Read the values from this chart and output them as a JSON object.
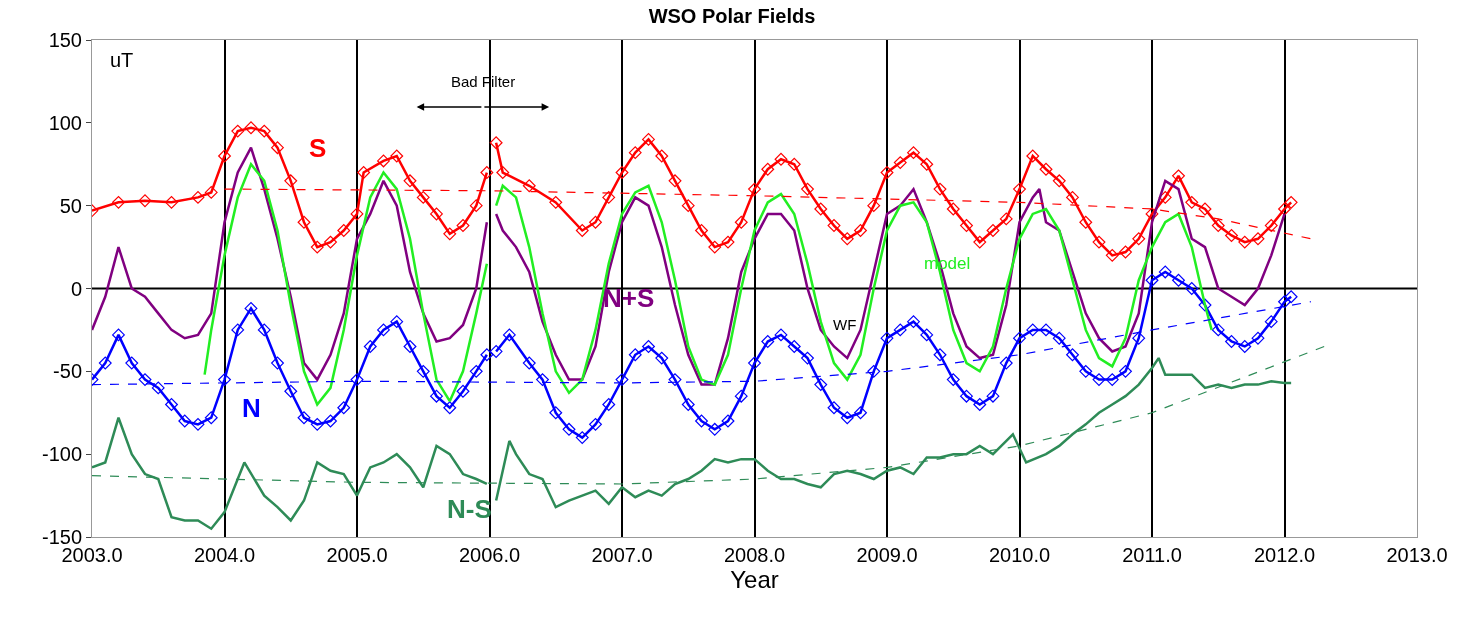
{
  "chart_data": {
    "type": "line",
    "title": "WSO Polar Fields",
    "xlabel": "Year",
    "ylabel": "uT",
    "xlim": [
      2003,
      2013
    ],
    "xticks": [
      {
        "value": 2003,
        "label": "2003.0"
      },
      {
        "value": 2004,
        "label": "2004.0"
      },
      {
        "value": 2005,
        "label": "2005.0"
      },
      {
        "value": 2006,
        "label": "2006.0"
      },
      {
        "value": 2007,
        "label": "2007.0"
      },
      {
        "value": 2008,
        "label": "2008.0"
      },
      {
        "value": 2009,
        "label": "2009.0"
      },
      {
        "value": 2010,
        "label": "2010.0"
      },
      {
        "value": 2011,
        "label": "2011.0"
      },
      {
        "value": 2012,
        "label": "2012.0"
      },
      {
        "value": 2013,
        "label": "2013.0"
      }
    ],
    "ylim": [
      -150,
      150
    ],
    "yticks": [
      -150,
      -100,
      -50,
      0,
      50,
      100,
      150
    ],
    "grid": "x",
    "legend": false,
    "series": [
      {
        "name": "S",
        "color": "#ff0000",
        "marker": "diamond",
        "line_style": "solid",
        "x": [
          2003.0,
          2003.2,
          2003.4,
          2003.6,
          2003.8,
          2003.9,
          2004.0,
          2004.1,
          2004.2,
          2004.3,
          2004.4,
          2004.5,
          2004.6,
          2004.7,
          2004.8,
          2004.9,
          2005.0,
          2005.05,
          2005.2,
          2005.3,
          2005.4,
          2005.5,
          2005.6,
          2005.7,
          2005.8,
          2005.9,
          2005.98,
          2006.0,
          2006.05,
          2006.1,
          2006.3,
          2006.5,
          2006.7,
          2006.8,
          2006.9,
          2007.0,
          2007.1,
          2007.2,
          2007.3,
          2007.4,
          2007.5,
          2007.6,
          2007.7,
          2007.8,
          2007.9,
          2008.0,
          2008.1,
          2008.2,
          2008.3,
          2008.4,
          2008.5,
          2008.6,
          2008.7,
          2008.8,
          2008.9,
          2009.0,
          2009.1,
          2009.2,
          2009.3,
          2009.4,
          2009.5,
          2009.6,
          2009.7,
          2009.8,
          2009.9,
          2010.0,
          2010.1,
          2010.2,
          2010.3,
          2010.4,
          2010.5,
          2010.6,
          2010.7,
          2010.8,
          2010.9,
          2011.0,
          2011.1,
          2011.2,
          2011.3,
          2011.4,
          2011.5,
          2011.6,
          2011.7,
          2011.8,
          2011.9,
          2012.0,
          2012.05
        ],
        "values": [
          47,
          52,
          53,
          52,
          55,
          58,
          80,
          95,
          97,
          95,
          85,
          65,
          40,
          25,
          28,
          35,
          45,
          70,
          77,
          80,
          65,
          55,
          45,
          33,
          38,
          50,
          70,
          null,
          88,
          70,
          62,
          52,
          35,
          40,
          55,
          70,
          82,
          90,
          80,
          65,
          50,
          35,
          25,
          28,
          40,
          60,
          72,
          78,
          75,
          60,
          48,
          38,
          30,
          35,
          50,
          70,
          76,
          82,
          75,
          60,
          48,
          38,
          28,
          35,
          42,
          60,
          80,
          72,
          65,
          55,
          40,
          28,
          20,
          22,
          30,
          45,
          55,
          68,
          52,
          48,
          38,
          32,
          28,
          30,
          38,
          48,
          52
        ]
      },
      {
        "name": "N",
        "color": "#0000ff",
        "marker": "diamond",
        "line_style": "solid",
        "x": [
          2003.0,
          2003.1,
          2003.2,
          2003.3,
          2003.4,
          2003.5,
          2003.6,
          2003.7,
          2003.8,
          2003.9,
          2004.0,
          2004.1,
          2004.2,
          2004.3,
          2004.4,
          2004.5,
          2004.6,
          2004.7,
          2004.8,
          2004.9,
          2005.0,
          2005.1,
          2005.2,
          2005.3,
          2005.4,
          2005.5,
          2005.6,
          2005.7,
          2005.8,
          2005.9,
          2005.98,
          2006.0,
          2006.05,
          2006.15,
          2006.3,
          2006.4,
          2006.5,
          2006.6,
          2006.7,
          2006.8,
          2006.9,
          2007.0,
          2007.1,
          2007.2,
          2007.3,
          2007.4,
          2007.5,
          2007.6,
          2007.7,
          2007.8,
          2007.9,
          2008.0,
          2008.1,
          2008.2,
          2008.3,
          2008.4,
          2008.5,
          2008.6,
          2008.7,
          2008.8,
          2008.9,
          2009.0,
          2009.1,
          2009.2,
          2009.3,
          2009.4,
          2009.5,
          2009.6,
          2009.7,
          2009.8,
          2009.9,
          2010.0,
          2010.1,
          2010.2,
          2010.3,
          2010.4,
          2010.5,
          2010.6,
          2010.7,
          2010.8,
          2010.9,
          2011.0,
          2011.1,
          2011.2,
          2011.3,
          2011.4,
          2011.5,
          2011.6,
          2011.7,
          2011.8,
          2011.9,
          2012.0,
          2012.05
        ],
        "values": [
          -55,
          -45,
          -28,
          -45,
          -55,
          -60,
          -70,
          -80,
          -82,
          -78,
          -55,
          -25,
          -12,
          -25,
          -45,
          -62,
          -78,
          -82,
          -80,
          -72,
          -55,
          -35,
          -25,
          -20,
          -35,
          -50,
          -65,
          -72,
          -62,
          -50,
          -40,
          null,
          -38,
          -28,
          -45,
          -55,
          -75,
          -85,
          -90,
          -82,
          -70,
          -55,
          -40,
          -35,
          -42,
          -55,
          -70,
          -80,
          -85,
          -80,
          -65,
          -45,
          -32,
          -28,
          -35,
          -42,
          -58,
          -72,
          -78,
          -75,
          -50,
          -30,
          -25,
          -20,
          -28,
          -40,
          -55,
          -65,
          -70,
          -65,
          -45,
          -30,
          -25,
          -25,
          -30,
          -40,
          -50,
          -55,
          -55,
          -50,
          -30,
          5,
          10,
          5,
          0,
          -10,
          -25,
          -32,
          -35,
          -30,
          -20,
          -8,
          -5
        ]
      },
      {
        "name": "N+S",
        "color": "#800080",
        "line_style": "solid",
        "x": [
          2003.0,
          2003.1,
          2003.2,
          2003.3,
          2003.4,
          2003.5,
          2003.6,
          2003.7,
          2003.8,
          2003.9,
          2004.0,
          2004.1,
          2004.2,
          2004.3,
          2004.4,
          2004.5,
          2004.6,
          2004.7,
          2004.8,
          2004.9,
          2005.0,
          2005.1,
          2005.2,
          2005.3,
          2005.4,
          2005.5,
          2005.6,
          2005.7,
          2005.8,
          2005.9,
          2005.98,
          2006.0,
          2006.05,
          2006.1,
          2006.2,
          2006.3,
          2006.4,
          2006.5,
          2006.6,
          2006.7,
          2006.8,
          2006.9,
          2007.0,
          2007.1,
          2007.2,
          2007.3,
          2007.4,
          2007.5,
          2007.6,
          2007.7,
          2007.8,
          2007.9,
          2008.0,
          2008.1,
          2008.2,
          2008.3,
          2008.4,
          2008.5,
          2008.6,
          2008.7,
          2008.8,
          2008.9,
          2009.0,
          2009.1,
          2009.2,
          2009.3,
          2009.4,
          2009.5,
          2009.6,
          2009.7,
          2009.8,
          2009.9,
          2010.0,
          2010.1,
          2010.15,
          2010.2,
          2010.3,
          2010.4,
          2010.5,
          2010.6,
          2010.7,
          2010.8,
          2010.9,
          2011.0,
          2011.1,
          2011.2,
          2011.3,
          2011.4,
          2011.5,
          2011.6,
          2011.7,
          2011.8,
          2011.9,
          2012.0
        ],
        "values": [
          -25,
          -5,
          25,
          0,
          -5,
          -15,
          -25,
          -30,
          -28,
          -15,
          40,
          70,
          85,
          60,
          30,
          -5,
          -45,
          -55,
          -40,
          -15,
          30,
          45,
          65,
          50,
          10,
          -15,
          -32,
          -30,
          -22,
          0,
          40,
          null,
          45,
          35,
          25,
          10,
          -20,
          -40,
          -55,
          -55,
          -35,
          10,
          40,
          55,
          50,
          25,
          -10,
          -40,
          -58,
          -58,
          -30,
          10,
          30,
          45,
          45,
          35,
          0,
          -25,
          -35,
          -42,
          -25,
          10,
          45,
          50,
          60,
          40,
          15,
          -15,
          -35,
          -42,
          -40,
          -10,
          40,
          55,
          60,
          40,
          35,
          10,
          -15,
          -30,
          -38,
          -35,
          -15,
          40,
          65,
          60,
          30,
          25,
          0,
          -5,
          -10,
          0,
          20,
          45
        ]
      },
      {
        "name": "model",
        "color": "#22ee22",
        "line_style": "solid",
        "x": [
          2003.85,
          2003.9,
          2004.0,
          2004.1,
          2004.2,
          2004.3,
          2004.4,
          2004.5,
          2004.6,
          2004.7,
          2004.8,
          2004.9,
          2005.0,
          2005.1,
          2005.2,
          2005.3,
          2005.4,
          2005.5,
          2005.6,
          2005.7,
          2005.8,
          2005.9,
          2005.98,
          2006.0,
          2006.05,
          2006.1,
          2006.2,
          2006.3,
          2006.4,
          2006.5,
          2006.6,
          2006.7,
          2006.8,
          2006.9,
          2007.0,
          2007.1,
          2007.2,
          2007.3,
          2007.4,
          2007.5,
          2007.6,
          2007.7,
          2007.8,
          2007.9,
          2008.0,
          2008.1,
          2008.2,
          2008.3,
          2008.4,
          2008.5,
          2008.6,
          2008.7,
          2008.8,
          2008.9,
          2009.0,
          2009.1,
          2009.2,
          2009.3,
          2009.4,
          2009.5,
          2009.6,
          2009.7,
          2009.8,
          2009.9,
          2010.0,
          2010.1,
          2010.2,
          2010.3,
          2010.4,
          2010.5,
          2010.6,
          2010.7,
          2010.8,
          2010.9,
          2011.0,
          2011.1,
          2011.2,
          2011.3,
          2011.4,
          2011.45
        ],
        "values": [
          -52,
          -25,
          20,
          55,
          75,
          65,
          35,
          -10,
          -50,
          -70,
          -60,
          -25,
          20,
          55,
          70,
          60,
          30,
          -15,
          -55,
          -68,
          -50,
          -15,
          15,
          null,
          50,
          62,
          55,
          25,
          -15,
          -50,
          -63,
          -55,
          -25,
          15,
          45,
          58,
          62,
          40,
          5,
          -35,
          -55,
          -58,
          -40,
          0,
          35,
          52,
          57,
          45,
          15,
          -20,
          -45,
          -55,
          -40,
          0,
          35,
          50,
          52,
          40,
          10,
          -25,
          -45,
          -50,
          -35,
          0,
          30,
          45,
          48,
          35,
          5,
          -25,
          -42,
          -47,
          -30,
          5,
          25,
          40,
          45,
          25,
          -10,
          -25
        ]
      },
      {
        "name": "N-S",
        "color": "#2e8b57",
        "line_style": "solid",
        "x": [
          2003.0,
          2003.1,
          2003.2,
          2003.3,
          2003.4,
          2003.5,
          2003.6,
          2003.7,
          2003.8,
          2003.9,
          2004.0,
          2004.1,
          2004.15,
          2004.3,
          2004.4,
          2004.5,
          2004.6,
          2004.7,
          2004.8,
          2004.9,
          2005.0,
          2005.1,
          2005.2,
          2005.3,
          2005.4,
          2005.5,
          2005.6,
          2005.7,
          2005.8,
          2005.9,
          2005.98,
          2006.0,
          2006.05,
          2006.15,
          2006.2,
          2006.3,
          2006.4,
          2006.5,
          2006.6,
          2006.7,
          2006.8,
          2006.9,
          2007.0,
          2007.1,
          2007.2,
          2007.3,
          2007.4,
          2007.5,
          2007.6,
          2007.7,
          2007.8,
          2007.9,
          2008.0,
          2008.1,
          2008.2,
          2008.3,
          2008.4,
          2008.5,
          2008.6,
          2008.7,
          2008.8,
          2008.9,
          2009.0,
          2009.1,
          2009.2,
          2009.3,
          2009.4,
          2009.5,
          2009.6,
          2009.7,
          2009.8,
          2009.95,
          2010.05,
          2010.2,
          2010.3,
          2010.4,
          2010.5,
          2010.6,
          2010.7,
          2010.8,
          2010.9,
          2011.0,
          2011.05,
          2011.1,
          2011.2,
          2011.3,
          2011.4,
          2011.5,
          2011.6,
          2011.7,
          2011.8,
          2011.9,
          2012.0,
          2012.05
        ],
        "values": [
          -108,
          -105,
          -78,
          -100,
          -112,
          -115,
          -138,
          -140,
          -140,
          -145,
          -135,
          -115,
          -105,
          -125,
          -132,
          -140,
          -128,
          -105,
          -110,
          -112,
          -125,
          -108,
          -105,
          -100,
          -108,
          -120,
          -95,
          -100,
          -112,
          -115,
          -118,
          null,
          -128,
          -92,
          -100,
          -112,
          -115,
          -132,
          -128,
          -125,
          -122,
          -130,
          -120,
          -126,
          -122,
          -125,
          -118,
          -115,
          -110,
          -103,
          -105,
          -103,
          -103,
          -110,
          -115,
          -115,
          -118,
          -120,
          -112,
          -110,
          -112,
          -115,
          -110,
          -108,
          -112,
          -102,
          -102,
          -100,
          -100,
          -95,
          -100,
          -88,
          -105,
          -100,
          -95,
          -88,
          -82,
          -75,
          -70,
          -65,
          -58,
          -48,
          -42,
          -52,
          -52,
          -52,
          -60,
          -58,
          -60,
          -58,
          -58,
          -56,
          -57,
          -57
        ]
      },
      {
        "color": "#ff0000",
        "line_style": "dashed",
        "x": [
          2004.0,
          2006.0,
          2008.0,
          2010.0,
          2011.0,
          2011.5,
          2012.2
        ],
        "values": [
          60,
          59,
          56,
          52,
          48,
          42,
          30
        ]
      },
      {
        "color": "#0000ff",
        "line_style": "dashed",
        "x": [
          2003.0,
          2005.0,
          2007.0,
          2008.0,
          2009.0,
          2010.0,
          2011.0,
          2012.2
        ],
        "values": [
          -58,
          -56,
          -57,
          -56,
          -50,
          -40,
          -25,
          -8
        ]
      },
      {
        "color": "#2e8b57",
        "line_style": "dashed",
        "x": [
          2003.0,
          2005.0,
          2007.0,
          2008.0,
          2009.0,
          2010.0,
          2011.0,
          2012.3
        ],
        "values": [
          -113,
          -117,
          -118,
          -115,
          -108,
          -95,
          -75,
          -35
        ]
      }
    ],
    "ref_lines": [
      {
        "axis": "y",
        "value": 0,
        "color": "#000000"
      }
    ],
    "annotations": [
      "Bad Filter",
      "WF"
    ]
  }
}
